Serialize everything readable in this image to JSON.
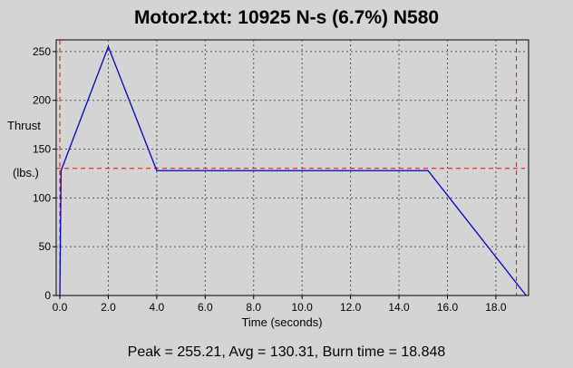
{
  "chart_data": {
    "type": "line",
    "title": "Motor2.txt:  10925 N-s (6.7%) N580",
    "xlabel": "Time (seconds)",
    "ylabel_line1": "Thrust",
    "ylabel_line2": "(lbs.)",
    "footer": "Peak = 255.21, Avg = 130.31, Burn time = 18.848",
    "xlim": [
      -0.15,
      19.35
    ],
    "ylim": [
      0,
      262
    ],
    "x_ticks": [
      0.0,
      2.0,
      4.0,
      6.0,
      8.0,
      10.0,
      12.0,
      14.0,
      16.0,
      18.0
    ],
    "x_tick_labels": [
      "0.0",
      "2.0",
      "4.0",
      "6.0",
      "8.0",
      "10.0",
      "12.0",
      "14.0",
      "16.0",
      "18.0"
    ],
    "y_ticks": [
      0,
      50,
      100,
      150,
      200,
      250
    ],
    "y_tick_labels": [
      "0",
      "50",
      "100",
      "150",
      "200",
      "250"
    ],
    "grid": true,
    "series": [
      {
        "color": "#0000cc",
        "x": [
          0.0,
          0.05,
          2.0,
          4.0,
          15.2,
          19.25
        ],
        "y": [
          0,
          128,
          255,
          128,
          128,
          0
        ]
      }
    ],
    "reference_lines": {
      "color": "#ff0000",
      "horizontal_y": 130.31,
      "vertical_x": [
        0.0,
        18.848
      ]
    }
  }
}
